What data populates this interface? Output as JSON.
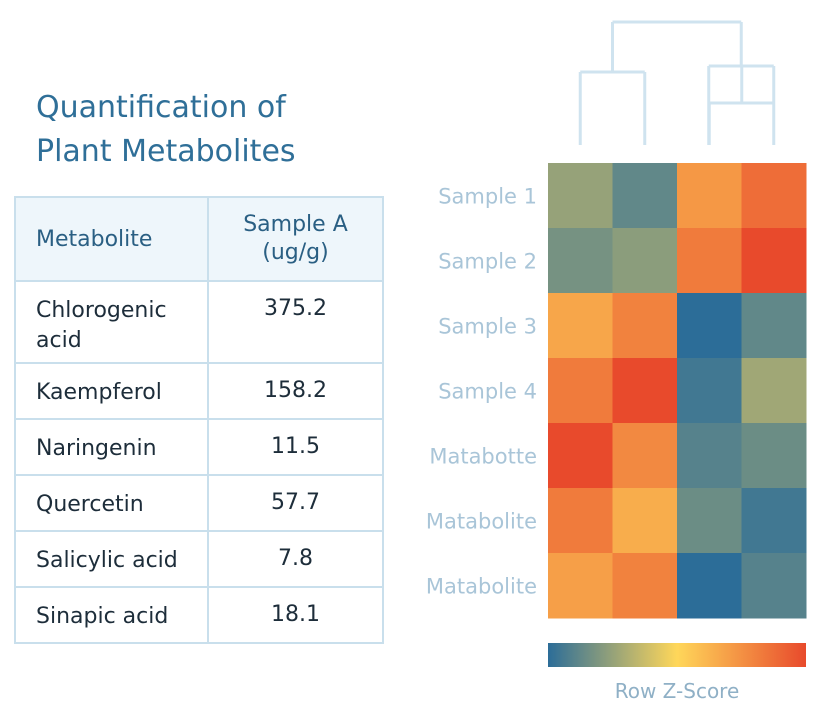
{
  "title_line1": "Quantification of",
  "title_line2": "Plant Metabolites",
  "table": {
    "headers": [
      "Metabolite",
      "Sample A",
      "(ug/g)"
    ],
    "rows": [
      {
        "name": "Chlorogenic",
        "name2": "acid",
        "value": "375.2"
      },
      {
        "name": "Kaempferol",
        "value": "158.2"
      },
      {
        "name": "Naringenin",
        "value": "11.5"
      },
      {
        "name": "Quercetin",
        "value": "57.7"
      },
      {
        "name": "Salicylic acid",
        "value": "7.8"
      },
      {
        "name": "Sinapic acid",
        "value": "18.1"
      }
    ]
  },
  "colors": {
    "dendrogram": "#cfe3ef",
    "scale_low": "#2c6d98",
    "scale_mid": "#ffd75a",
    "scale_high": "#e84a2c"
  },
  "chart_data": {
    "type": "heatmap",
    "row_labels": [
      "Sample 1",
      "Sample 2",
      "Sample 3",
      "Sample 4",
      "Matabotte",
      "Matabolite",
      "Matabolite"
    ],
    "n_columns": 4,
    "z_range": [
      -2,
      2
    ],
    "values": [
      [
        -1.0,
        -1.5,
        0.9,
        1.5
      ],
      [
        -1.3,
        -1.1,
        1.3,
        2.0
      ],
      [
        0.7,
        1.2,
        -2.0,
        -1.5
      ],
      [
        1.3,
        2.0,
        -1.8,
        -0.9
      ],
      [
        2.0,
        1.1,
        -1.6,
        -1.4
      ],
      [
        1.3,
        0.6,
        -1.4,
        -1.8
      ],
      [
        0.8,
        1.2,
        -2.0,
        -1.6
      ]
    ],
    "dendrogram": "column clustering: ((col1, col2), (col3, col4))",
    "colorbar_label": "Row Z-Score"
  }
}
